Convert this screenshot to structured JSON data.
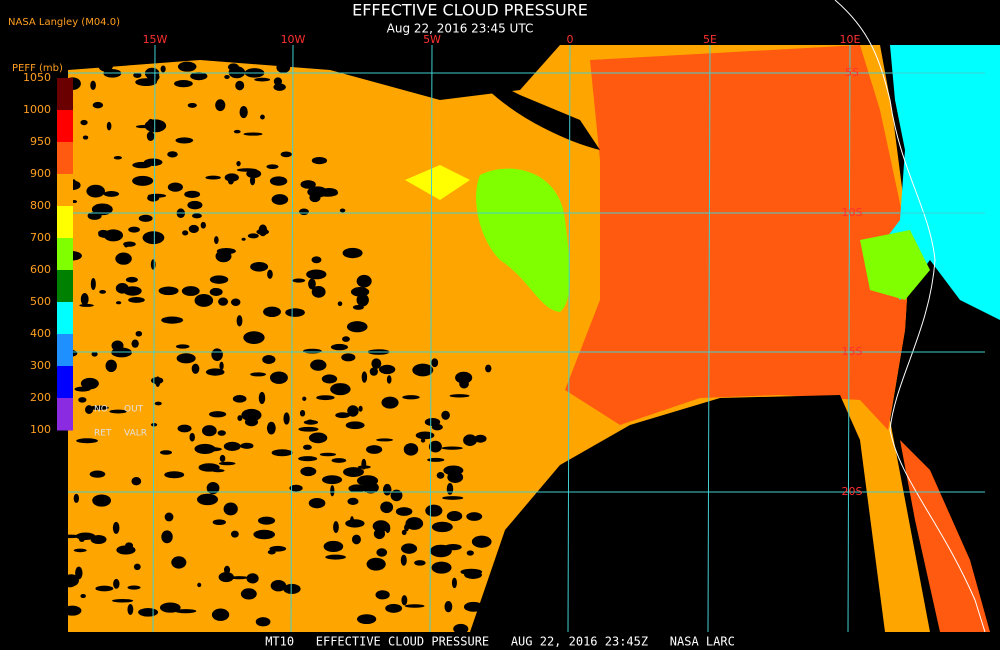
{
  "header": {
    "source": "NASA Langley (M04.0)",
    "title": "EFFECTIVE CLOUD PRESSURE",
    "subtitle": "Aug 22, 2016 23:45 UTC"
  },
  "legend": {
    "title": "PEFF (mb)",
    "labels": [
      "1050",
      "1000",
      "950",
      "900",
      "800",
      "700",
      "600",
      "500",
      "400",
      "300",
      "200",
      "100"
    ],
    "notes": [
      "NO",
      "OUT",
      "RET",
      "VALR"
    ]
  },
  "grid": {
    "longitude_labels": [
      "15W",
      "10W",
      "5W",
      "0",
      "5E",
      "10E"
    ],
    "latitude_labels": [
      "5S",
      "10S",
      "15S",
      "20S"
    ]
  },
  "footer": "MT10   EFFECTIVE CLOUD PRESSURE   AUG 22, 2016 23:45Z   NASA LARC"
}
